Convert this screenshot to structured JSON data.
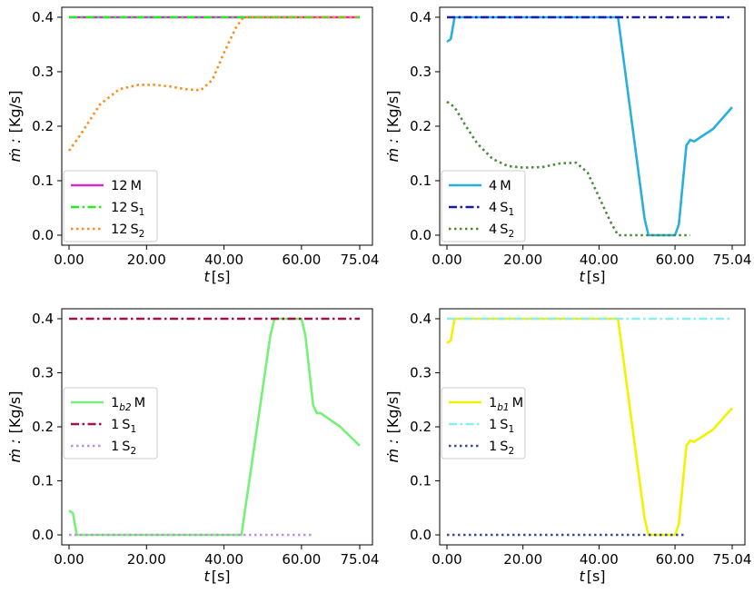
{
  "chart_data": [
    {
      "type": "line",
      "xlabel_main": "t",
      "xlabel_unit": "[s]",
      "ylabel_main": "ṁ :",
      "ylabel_unit": "[Kg/s]",
      "xlim": [
        0,
        75.04
      ],
      "ylim": [
        0,
        0.4
      ],
      "xticks": [
        "0.00",
        "20.00",
        "40.00",
        "60.00",
        "75.04"
      ],
      "yticks": [
        "0.0",
        "0.1",
        "0.2",
        "0.3",
        "0.4"
      ],
      "legend_position": "bottom-left",
      "series": [
        {
          "name": "12 M",
          "label": {
            "base": "12",
            "sub": "",
            "suffix": "M"
          },
          "color": "#d62ad6",
          "dash": "solid",
          "x": [
            0,
            75.04
          ],
          "y": [
            0.4,
            0.4
          ]
        },
        {
          "name": "12 S1",
          "label": {
            "base": "12",
            "sub": "",
            "suffix": "S",
            "suffix_sub": "1"
          },
          "color": "#22ee22",
          "dash": "dashdot",
          "x": [
            0,
            75.04
          ],
          "y": [
            0.4,
            0.4
          ]
        },
        {
          "name": "12 S2",
          "label": {
            "base": "12",
            "sub": "",
            "suffix": "S",
            "suffix_sub": "2"
          },
          "color": "#ff8c1a",
          "dash": "dotted",
          "x": [
            0,
            3,
            8,
            13,
            18,
            22,
            26,
            30,
            34,
            37,
            40,
            43,
            45,
            75.04
          ],
          "y": [
            0.155,
            0.185,
            0.24,
            0.268,
            0.276,
            0.276,
            0.273,
            0.268,
            0.266,
            0.285,
            0.335,
            0.38,
            0.4,
            0.4
          ]
        }
      ]
    },
    {
      "type": "line",
      "xlabel_main": "t",
      "xlabel_unit": "[s]",
      "ylabel_main": "ṁ :",
      "ylabel_unit": "[Kg/s]",
      "xlim": [
        0,
        75.04
      ],
      "ylim": [
        0,
        0.4
      ],
      "xticks": [
        "0.00",
        "20.00",
        "40.00",
        "60.00",
        "75.04"
      ],
      "yticks": [
        "0.0",
        "0.1",
        "0.2",
        "0.3",
        "0.4"
      ],
      "legend_position": "bottom-left",
      "series": [
        {
          "name": "4 M",
          "label": {
            "base": "4",
            "sub": "",
            "suffix": "M"
          },
          "color": "#29aee0",
          "dash": "solid",
          "x": [
            0,
            1,
            2,
            45,
            52,
            53,
            60,
            61,
            63,
            64,
            65,
            70,
            75.04
          ],
          "y": [
            0.355,
            0.36,
            0.4,
            0.4,
            0.03,
            0.0,
            0.0,
            0.02,
            0.165,
            0.175,
            0.172,
            0.195,
            0.235
          ]
        },
        {
          "name": "4 S1",
          "label": {
            "base": "4",
            "sub": "",
            "suffix": "S",
            "suffix_sub": "1"
          },
          "color": "#1a1aaa",
          "dash": "dashdot",
          "x": [
            0,
            75.04
          ],
          "y": [
            0.4,
            0.4
          ]
        },
        {
          "name": "4 S2",
          "label": {
            "base": "4",
            "sub": "",
            "suffix": "S",
            "suffix_sub": "2"
          },
          "color": "#4a8a3a",
          "dash": "dotted",
          "x": [
            0,
            2,
            5,
            8,
            12,
            16,
            20,
            25,
            30,
            34,
            37,
            40,
            43,
            45,
            48,
            55,
            64
          ],
          "y": [
            0.245,
            0.235,
            0.2,
            0.168,
            0.14,
            0.127,
            0.124,
            0.125,
            0.132,
            0.133,
            0.115,
            0.07,
            0.025,
            0.0,
            0.0,
            0.0,
            0.0
          ]
        }
      ]
    },
    {
      "type": "line",
      "xlabel_main": "t",
      "xlabel_unit": "[s]",
      "ylabel_main": "ṁ :",
      "ylabel_unit": "[Kg/s]",
      "xlim": [
        0,
        75.04
      ],
      "ylim": [
        0,
        0.4
      ],
      "xticks": [
        "0.00",
        "20.00",
        "40.00",
        "60.00",
        "75.04"
      ],
      "yticks": [
        "0.0",
        "0.1",
        "0.2",
        "0.3",
        "0.4"
      ],
      "legend_position": "center-left",
      "series": [
        {
          "name": "1b2 M",
          "label": {
            "base": "1",
            "sub": "b2",
            "suffix": "M"
          },
          "color": "#77f077",
          "dash": "solid",
          "x": [
            0,
            1,
            2,
            44.5,
            52,
            53,
            60,
            61,
            63,
            64,
            65,
            70,
            75.04
          ],
          "y": [
            0.045,
            0.04,
            0.0,
            0.0,
            0.37,
            0.4,
            0.4,
            0.37,
            0.24,
            0.225,
            0.225,
            0.2,
            0.165
          ]
        },
        {
          "name": "1 S1",
          "label": {
            "base": "1",
            "sub": "",
            "suffix": "S",
            "suffix_sub": "1"
          },
          "color": "#a0104a",
          "dash": "dashdot",
          "x": [
            0,
            75.04
          ],
          "y": [
            0.4,
            0.4
          ]
        },
        {
          "name": "1 S2",
          "label": {
            "base": "1",
            "sub": "",
            "suffix": "S",
            "suffix_sub": "2"
          },
          "color": "#c090d8",
          "dash": "dotted",
          "x": [
            0,
            63
          ],
          "y": [
            0.0,
            0.0
          ]
        }
      ]
    },
    {
      "type": "line",
      "xlabel_main": "t",
      "xlabel_unit": "[s]",
      "ylabel_main": "ṁ :",
      "ylabel_unit": "[Kg/s]",
      "xlim": [
        0,
        75.04
      ],
      "ylim": [
        0,
        0.4
      ],
      "xticks": [
        "0.00",
        "20.00",
        "40.00",
        "60.00",
        "75.04"
      ],
      "yticks": [
        "0.0",
        "0.1",
        "0.2",
        "0.3",
        "0.4"
      ],
      "legend_position": "center-left",
      "series": [
        {
          "name": "1b1 M",
          "label": {
            "base": "1",
            "sub": "b1",
            "suffix": "M"
          },
          "color": "#f2f200",
          "dash": "solid",
          "x": [
            0,
            1,
            2,
            45,
            52,
            53,
            60,
            61,
            63,
            64,
            65,
            70,
            75.04
          ],
          "y": [
            0.355,
            0.36,
            0.4,
            0.4,
            0.03,
            0.0,
            0.0,
            0.02,
            0.165,
            0.175,
            0.172,
            0.195,
            0.235
          ]
        },
        {
          "name": "1 S1",
          "label": {
            "base": "1",
            "sub": "",
            "suffix": "S",
            "suffix_sub": "1"
          },
          "color": "#88eeee",
          "dash": "dashdot",
          "x": [
            0,
            75.04
          ],
          "y": [
            0.4,
            0.4
          ]
        },
        {
          "name": "1 S2",
          "label": {
            "base": "1",
            "sub": "",
            "suffix": "S",
            "suffix_sub": "2"
          },
          "color": "#3a4a90",
          "dash": "dotted",
          "x": [
            0,
            63
          ],
          "y": [
            0.0,
            0.0
          ]
        }
      ]
    }
  ]
}
